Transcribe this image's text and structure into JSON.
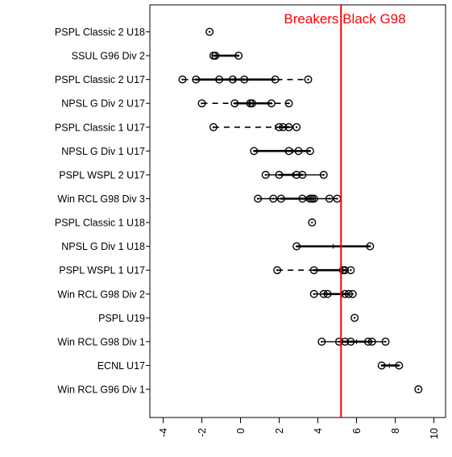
{
  "chart_data": {
    "type": "scatter",
    "title": "",
    "xlabel": "",
    "ylabel": "",
    "xlim": [
      -4.5,
      10.6
    ],
    "x_ticks": [
      "-4",
      "-2",
      "0",
      "2",
      "4",
      "6",
      "8",
      "10"
    ],
    "grid": false,
    "orientation": "horizontal-dotplot",
    "reference_line": {
      "label": "Breakers Black G98",
      "x": 5.2,
      "color": "#ff0000"
    },
    "series": [
      {
        "label": "PSPL Classic 2 U18",
        "points": [
          -1.6
        ],
        "line": "none",
        "mark": null
      },
      {
        "label": "SSUL G96 Div 2",
        "points": [
          -1.4,
          -1.3,
          -0.1
        ],
        "line": "solid",
        "mark": null
      },
      {
        "label": "PSPL Classic 2 U17",
        "points": [
          -3.0,
          -2.3,
          -1.1,
          -0.4,
          0.2,
          1.8,
          3.5
        ],
        "line": "dashed",
        "mark": -0.3
      },
      {
        "label": "NPSL G Div 2 U17",
        "points": [
          -2.0,
          -0.3,
          0.5,
          0.6,
          1.6,
          2.5
        ],
        "line": "dashed",
        "mark": 0.5
      },
      {
        "label": "PSPL Classic 1 U17",
        "points": [
          -1.4,
          2.0,
          2.5,
          2.9,
          2.2
        ],
        "line": "dashed",
        "mark": 1.8
      },
      {
        "label": "NPSL G Div 1 U17",
        "points": [
          0.7,
          2.5,
          3.0,
          3.6
        ],
        "line": "solid",
        "mark": 2.7
      },
      {
        "label": "PSPL WSPL 2 U17",
        "points": [
          1.3,
          2.0,
          2.9,
          3.2,
          4.3
        ],
        "line": "solid",
        "mark": 2.7
      },
      {
        "label": "Win RCL G98 Div 3",
        "points": [
          0.9,
          1.7,
          2.1,
          3.2,
          3.6,
          3.7,
          3.8,
          4.6,
          5.0
        ],
        "line": "solid",
        "mark": 3.4
      },
      {
        "label": "PSPL Classic 1 U18",
        "points": [
          3.7
        ],
        "line": "none",
        "mark": null
      },
      {
        "label": "NPSL G Div 1 U18",
        "points": [
          2.9,
          6.7
        ],
        "line": "solid",
        "mark": 4.8
      },
      {
        "label": "PSPL WSPL 1 U17",
        "points": [
          1.9,
          3.8,
          5.3,
          5.4,
          5.7
        ],
        "line": "dashed",
        "mark": 5.3
      },
      {
        "label": "Win RCL G98 Div 2",
        "points": [
          3.8,
          4.3,
          4.5,
          5.4,
          5.6,
          5.8
        ],
        "line": "solid",
        "mark": 5.3
      },
      {
        "label": "PSPL U19",
        "points": [
          5.9
        ],
        "line": "none",
        "mark": null
      },
      {
        "label": "Win RCL G98 Div 1",
        "points": [
          4.2,
          5.1,
          5.4,
          5.7,
          6.6,
          6.8,
          7.5
        ],
        "line": "solid",
        "mark": 6.0
      },
      {
        "label": "ECNL U17",
        "points": [
          7.3,
          8.2
        ],
        "line": "solid",
        "mark": 7.7
      },
      {
        "label": "Win RCL G96 Div 1",
        "points": [
          9.2
        ],
        "line": "none",
        "mark": null
      }
    ]
  }
}
